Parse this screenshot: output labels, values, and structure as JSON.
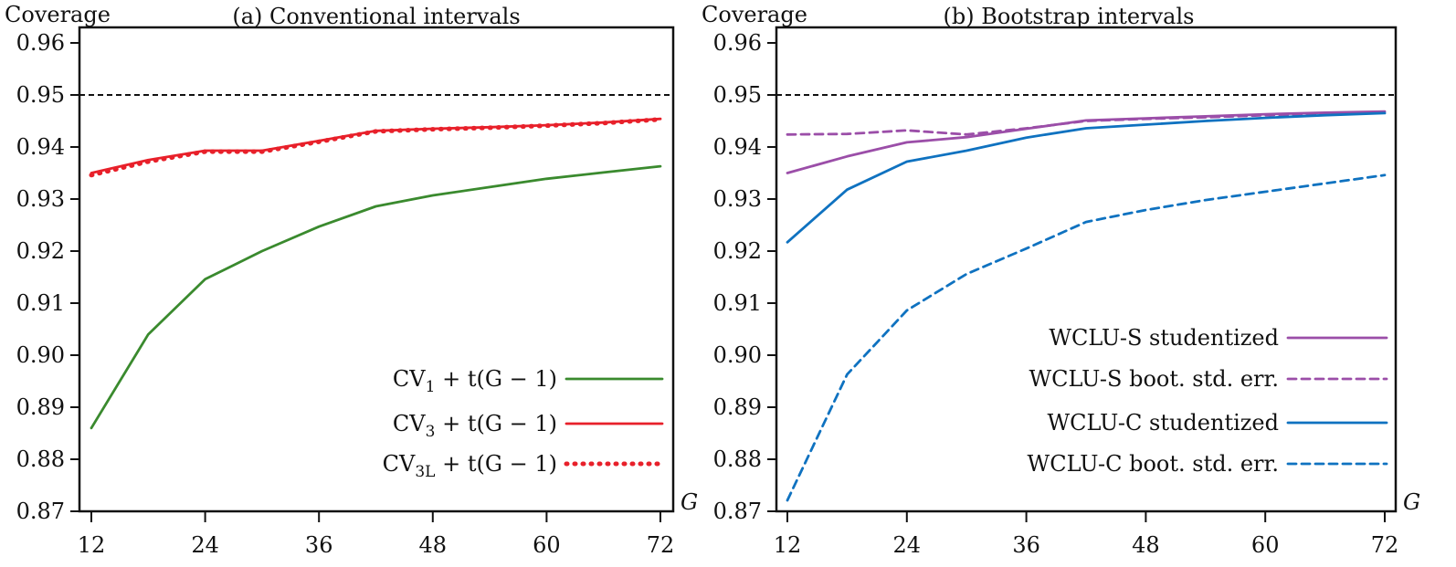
{
  "chart_data": [
    {
      "type": "line",
      "title": "(a) Conventional intervals",
      "ylabel": "Coverage",
      "xlabel": "G",
      "xlim": [
        12,
        72
      ],
      "ylim": [
        0.87,
        0.96
      ],
      "xticks": [
        "12",
        "24",
        "36",
        "48",
        "60",
        "72"
      ],
      "yticks": [
        "0.87",
        "0.88",
        "0.89",
        "0.90",
        "0.91",
        "0.92",
        "0.93",
        "0.94",
        "0.95",
        "0.96"
      ],
      "reference_line": 0.95,
      "legend_position": "bottom-right",
      "x": [
        12,
        18,
        24,
        30,
        36,
        42,
        48,
        54,
        60,
        66,
        72
      ],
      "series": [
        {
          "name": {
            "base": "CV",
            "sub": "1",
            "rest": " + t(G − 1)"
          },
          "color": "#3a8a2e",
          "style": "solid",
          "values": [
            0.886,
            0.904,
            0.9146,
            0.92,
            0.9247,
            0.9286,
            0.9307,
            0.9323,
            0.9339,
            0.9351,
            0.9363
          ]
        },
        {
          "name": {
            "base": "CV",
            "sub": "3",
            "rest": " + t(G − 1)"
          },
          "color": "#e8202a",
          "style": "solid",
          "values": [
            0.935,
            0.9375,
            0.9393,
            0.9393,
            0.9412,
            0.9431,
            0.9435,
            0.9438,
            0.9442,
            0.9447,
            0.9454
          ]
        },
        {
          "name": {
            "base": "CV",
            "sub": "3L",
            "rest": " + t(G − 1)"
          },
          "color": "#e8202a",
          "style": "dotted",
          "values": [
            0.9346,
            0.9372,
            0.9391,
            0.9391,
            0.941,
            0.943,
            0.9434,
            0.9437,
            0.9441,
            0.9446,
            0.9453
          ]
        }
      ]
    },
    {
      "type": "line",
      "title": "(b) Bootstrap intervals",
      "ylabel": "Coverage",
      "xlabel": "G",
      "xlim": [
        12,
        72
      ],
      "ylim": [
        0.87,
        0.96
      ],
      "xticks": [
        "12",
        "24",
        "36",
        "48",
        "60",
        "72"
      ],
      "yticks": [
        "0.87",
        "0.88",
        "0.89",
        "0.90",
        "0.91",
        "0.92",
        "0.93",
        "0.94",
        "0.95",
        "0.96"
      ],
      "reference_line": 0.95,
      "legend_position": "bottom-right",
      "x": [
        12,
        18,
        24,
        30,
        36,
        42,
        48,
        54,
        60,
        66,
        72
      ],
      "series": [
        {
          "name": {
            "base": "WCLU-S studentized",
            "sub": "",
            "rest": ""
          },
          "color": "#9b4ea8",
          "style": "solid",
          "values": [
            0.935,
            0.9382,
            0.9409,
            0.9419,
            0.9435,
            0.9451,
            0.9455,
            0.9459,
            0.9463,
            0.9466,
            0.9468
          ]
        },
        {
          "name": {
            "base": "WCLU-S boot. std. err.",
            "sub": "",
            "rest": ""
          },
          "color": "#9b4ea8",
          "style": "dashed",
          "values": [
            0.9424,
            0.9425,
            0.9432,
            0.9424,
            0.9436,
            0.945,
            0.9454,
            0.9457,
            0.9461,
            0.9464,
            0.9466
          ]
        },
        {
          "name": {
            "base": "WCLU-C studentized",
            "sub": "",
            "rest": ""
          },
          "color": "#0f72c0",
          "style": "solid",
          "values": [
            0.9217,
            0.9318,
            0.9372,
            0.9393,
            0.9418,
            0.9436,
            0.9443,
            0.945,
            0.9456,
            0.9461,
            0.9465
          ]
        },
        {
          "name": {
            "base": "WCLU-C boot. std. err.",
            "sub": "",
            "rest": ""
          },
          "color": "#0f72c0",
          "style": "dashed",
          "values": [
            0.8721,
            0.8963,
            0.9086,
            0.9156,
            0.9205,
            0.9256,
            0.9279,
            0.9298,
            0.9314,
            0.933,
            0.9346
          ]
        }
      ]
    }
  ]
}
